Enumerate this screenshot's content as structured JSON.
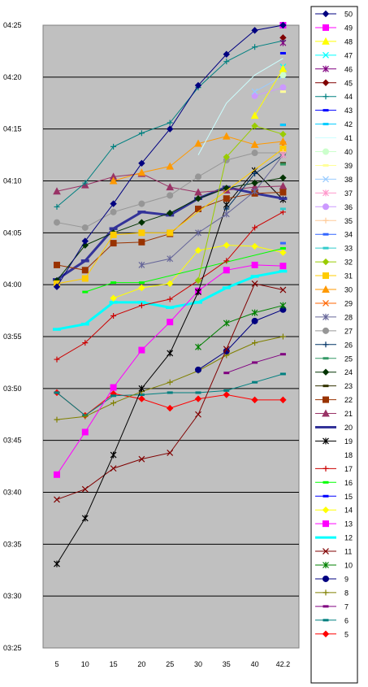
{
  "chart_data": {
    "type": "line",
    "title": "",
    "xlabel": "",
    "ylabel": "",
    "categories": [
      "5",
      "10",
      "15",
      "20",
      "25",
      "30",
      "35",
      "40",
      "42.2"
    ],
    "y_tick_labels": [
      "03:25",
      "03:30",
      "03:35",
      "03:40",
      "03:45",
      "03:50",
      "03:55",
      "04:00",
      "04:05",
      "04:10",
      "04:15",
      "04:20",
      "04:25"
    ],
    "ylim_minutes": [
      205,
      265
    ],
    "grid": "horizontal",
    "legend_position": "right",
    "plot_background": "#c0c0c0",
    "series": [
      {
        "name": "50",
        "color": "#000080",
        "marker": "diamond",
        "values": [
          239.8,
          244.2,
          247.8,
          251.7,
          255,
          259.2,
          262.2,
          264.5,
          265
        ]
      },
      {
        "name": "49",
        "color": "#ff00ff",
        "marker": "square",
        "values": [
          null,
          null,
          null,
          null,
          null,
          null,
          null,
          null,
          265
        ]
      },
      {
        "name": "48",
        "color": "#ffff00",
        "marker": "triangle",
        "values": [
          null,
          null,
          null,
          null,
          null,
          null,
          null,
          256.3,
          260.8
        ]
      },
      {
        "name": "47",
        "color": "#00ffff",
        "marker": "x",
        "values": [
          null,
          null,
          null,
          null,
          null,
          null,
          null,
          null,
          261
        ]
      },
      {
        "name": "46",
        "color": "#800080",
        "marker": "star",
        "values": [
          null,
          null,
          null,
          null,
          null,
          null,
          null,
          null,
          263.3
        ]
      },
      {
        "name": "45",
        "color": "#800000",
        "marker": "diamond",
        "values": [
          null,
          null,
          null,
          null,
          null,
          null,
          null,
          null,
          263.8
        ]
      },
      {
        "name": "44",
        "color": "#008080",
        "marker": "plus",
        "values": [
          247.5,
          249.8,
          253.3,
          254.6,
          255.6,
          259,
          261.5,
          262.9,
          263.5
        ]
      },
      {
        "name": "43",
        "color": "#0000ff",
        "marker": "dash",
        "values": [
          null,
          null,
          null,
          null,
          null,
          null,
          null,
          null,
          262.3
        ]
      },
      {
        "name": "42",
        "color": "#00ccff",
        "marker": "dash",
        "values": [
          null,
          null,
          null,
          null,
          null,
          null,
          null,
          null,
          255.4
        ]
      },
      {
        "name": "41",
        "color": "#ccffff",
        "marker": "none",
        "values": [
          null,
          null,
          null,
          null,
          null,
          252.5,
          257.5,
          260.2,
          261.8
        ]
      },
      {
        "name": "40",
        "color": "#ccffcc",
        "marker": "circle",
        "values": [
          null,
          null,
          null,
          null,
          null,
          null,
          null,
          null,
          260.2
        ]
      },
      {
        "name": "39",
        "color": "#ffff99",
        "marker": "dash",
        "values": [
          null,
          null,
          null,
          null,
          null,
          null,
          null,
          null,
          258.6
        ]
      },
      {
        "name": "38",
        "color": "#99ccff",
        "marker": "x",
        "values": [
          null,
          null,
          null,
          null,
          null,
          null,
          null,
          258.6,
          260.1
        ]
      },
      {
        "name": "37",
        "color": "#ff99cc",
        "marker": "star",
        "values": [
          null,
          null,
          null,
          null,
          null,
          null,
          null,
          null,
          252.5
        ]
      },
      {
        "name": "36",
        "color": "#cc99ff",
        "marker": "circle",
        "values": [
          null,
          null,
          null,
          null,
          null,
          null,
          null,
          258.2,
          259
        ]
      },
      {
        "name": "35",
        "color": "#ffcc99",
        "marker": "plus",
        "values": [
          null,
          null,
          null,
          null,
          null,
          null,
          null,
          null,
          252.8
        ]
      },
      {
        "name": "34",
        "color": "#3366ff",
        "marker": "dash",
        "values": [
          null,
          null,
          null,
          null,
          null,
          null,
          null,
          null,
          244
        ]
      },
      {
        "name": "33",
        "color": "#33cccc",
        "marker": "dash",
        "values": [
          null,
          null,
          null,
          null,
          null,
          null,
          null,
          null,
          247.3
        ]
      },
      {
        "name": "32",
        "color": "#99cc00",
        "marker": "diamond",
        "values": [
          null,
          null,
          null,
          null,
          null,
          240.4,
          252.3,
          255.3,
          254.5
        ]
      },
      {
        "name": "31",
        "color": "#ffcc00",
        "marker": "square",
        "values": [
          240.1,
          240.6,
          244.8,
          245,
          245,
          null,
          null,
          null,
          253.1
        ]
      },
      {
        "name": "30",
        "color": "#ff9900",
        "marker": "triangle",
        "values": [
          null,
          null,
          250,
          250.8,
          251.4,
          253.6,
          254.3,
          253.5,
          253.8
        ]
      },
      {
        "name": "29",
        "color": "#ff6600",
        "marker": "x",
        "values": [
          null,
          null,
          null,
          null,
          null,
          null,
          null,
          null,
          253.5
        ]
      },
      {
        "name": "28",
        "color": "#666699",
        "marker": "star",
        "values": [
          null,
          null,
          null,
          241.9,
          242.5,
          245,
          246.8,
          249,
          252.5
        ]
      },
      {
        "name": "27",
        "color": "#969696",
        "marker": "circle",
        "values": [
          246,
          245.5,
          247,
          247.8,
          248.6,
          250.4,
          252,
          252.7,
          252.7
        ]
      },
      {
        "name": "26",
        "color": "#003366",
        "marker": "plus",
        "values": [
          null,
          null,
          null,
          null,
          null,
          null,
          247.3,
          250.7,
          252.5
        ]
      },
      {
        "name": "25",
        "color": "#339966",
        "marker": "dash",
        "values": [
          null,
          null,
          null,
          null,
          null,
          null,
          null,
          null,
          251.6
        ]
      },
      {
        "name": "24",
        "color": "#003300",
        "marker": "diamond",
        "values": [
          240.4,
          243.8,
          245,
          246,
          246.9,
          248.3,
          249.3,
          249.8,
          250.3
        ]
      },
      {
        "name": "23",
        "color": "#333300",
        "marker": "dash",
        "values": [
          null,
          null,
          null,
          null,
          null,
          null,
          null,
          null,
          251.7
        ]
      },
      {
        "name": "22",
        "color": "#993300",
        "marker": "square",
        "values": [
          241.9,
          241.4,
          244,
          244.1,
          244.9,
          247.3,
          248.3,
          248.8,
          248.9
        ]
      },
      {
        "name": "21",
        "color": "#993366",
        "marker": "triangle",
        "values": [
          249,
          249.6,
          250.4,
          250.7,
          249.4,
          248.9,
          249.1,
          249.4,
          249.5
        ]
      },
      {
        "name": "20",
        "color": "#333399",
        "marker": "thick",
        "values": [
          240.5,
          242.3,
          245.4,
          247,
          246.7,
          248.3,
          249.4,
          248.8,
          248.3
        ]
      },
      {
        "name": "19",
        "color": "#000000",
        "marker": "star",
        "values": [
          213.1,
          217.5,
          223.6,
          230,
          233.4,
          239.3,
          247.7,
          251,
          248.2
        ]
      },
      {
        "name": "18",
        "color": "#ffffff",
        "marker": "none",
        "values": [
          null,
          null,
          null,
          null,
          null,
          null,
          null,
          null,
          null
        ]
      },
      {
        "name": "17",
        "color": "#cc0000",
        "marker": "plus",
        "values": [
          232.8,
          234.4,
          237,
          238,
          238.6,
          240.4,
          242.3,
          245.5,
          247
        ]
      },
      {
        "name": "16",
        "color": "#00ff00",
        "marker": "dash",
        "values": [
          null,
          239.3,
          240.2,
          240.2,
          null,
          null,
          null,
          null,
          243.5
        ]
      },
      {
        "name": "15",
        "color": "#0000ff",
        "marker": "dash",
        "values": [
          null,
          null,
          null,
          null,
          null,
          null,
          null,
          null,
          255.4
        ]
      },
      {
        "name": "14",
        "color": "#ffff00",
        "marker": "diamond",
        "values": [
          null,
          null,
          238.7,
          239.7,
          240.1,
          243.3,
          243.8,
          243.7,
          243.1
        ]
      },
      {
        "name": "13",
        "color": "#ff00ff",
        "marker": "square",
        "values": [
          221.7,
          225.8,
          230.1,
          233.7,
          236.4,
          239.4,
          241.4,
          241.9,
          241.8
        ]
      },
      {
        "name": "12",
        "color": "#00ffff",
        "marker": "thick",
        "values": [
          235.7,
          236.2,
          238.3,
          238.3,
          237.8,
          238.3,
          239.7,
          240.8,
          241.3
        ]
      },
      {
        "name": "11",
        "color": "#800000",
        "marker": "x",
        "values": [
          219.3,
          220.3,
          222.3,
          223.2,
          223.8,
          227.5,
          233.8,
          240.1,
          239.5
        ]
      },
      {
        "name": "10",
        "color": "#008000",
        "marker": "star",
        "values": [
          null,
          null,
          null,
          null,
          null,
          234,
          236.3,
          237.3,
          238
        ]
      },
      {
        "name": "9",
        "color": "#000080",
        "marker": "circle",
        "values": [
          null,
          null,
          null,
          null,
          null,
          231.8,
          233.6,
          236.5,
          237.6
        ]
      },
      {
        "name": "8",
        "color": "#808000",
        "marker": "plus",
        "values": [
          227,
          227.3,
          228.6,
          229.7,
          230.6,
          231.7,
          233.2,
          234.4,
          235
        ]
      },
      {
        "name": "7",
        "color": "#800080",
        "marker": "dash",
        "values": [
          null,
          null,
          null,
          null,
          null,
          null,
          231.5,
          232.5,
          233.3
        ]
      },
      {
        "name": "6",
        "color": "#008080",
        "marker": "dash",
        "values": [
          229.6,
          227.4,
          229.3,
          229.4,
          229.6,
          229.6,
          229.8,
          230.6,
          231.4
        ]
      },
      {
        "name": "5",
        "color": "#ff0000",
        "marker": "diamond",
        "values": [
          229.6,
          227.4,
          229.5,
          229,
          228.1,
          229,
          229.4,
          228.9,
          228.9
        ]
      }
    ]
  }
}
